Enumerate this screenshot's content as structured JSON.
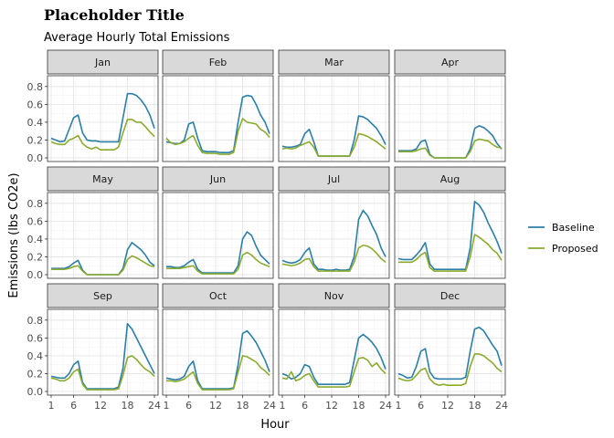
{
  "chart_data": {
    "type": "line",
    "title": "Placeholder Title",
    "subtitle": "Average Hourly Total Emissions",
    "xlabel": "Hour",
    "ylabel": "Emissions (lbs CO2e)",
    "x_ticks": [
      1,
      6,
      12,
      18,
      24
    ],
    "y_ticks": [
      0.0,
      0.2,
      0.4,
      0.6,
      0.8
    ],
    "y_tick_labels": [
      "0.0",
      "0.2",
      "0.4",
      "0.6",
      "0.8"
    ],
    "xlim": [
      1,
      24
    ],
    "ylim": [
      0,
      0.88
    ],
    "grid": true,
    "legend_position": "right",
    "series_colors": {
      "Baseline": "#2a7ea8",
      "Proposed": "#8aab2e"
    },
    "hours": [
      1,
      2,
      3,
      4,
      5,
      6,
      7,
      8,
      9,
      10,
      11,
      12,
      13,
      14,
      15,
      16,
      17,
      18,
      19,
      20,
      21,
      22,
      23,
      24
    ],
    "facets": [
      {
        "label": "Jan",
        "series": [
          {
            "name": "Baseline",
            "values": [
              0.22,
              0.2,
              0.18,
              0.19,
              0.32,
              0.45,
              0.48,
              0.28,
              0.2,
              0.19,
              0.19,
              0.18,
              0.18,
              0.18,
              0.18,
              0.18,
              0.45,
              0.72,
              0.72,
              0.7,
              0.65,
              0.58,
              0.48,
              0.33
            ]
          },
          {
            "name": "Proposed",
            "values": [
              0.18,
              0.16,
              0.15,
              0.15,
              0.2,
              0.22,
              0.25,
              0.16,
              0.12,
              0.1,
              0.12,
              0.09,
              0.09,
              0.09,
              0.09,
              0.12,
              0.28,
              0.43,
              0.43,
              0.4,
              0.4,
              0.35,
              0.29,
              0.24
            ]
          }
        ]
      },
      {
        "label": "Feb",
        "series": [
          {
            "name": "Baseline",
            "values": [
              0.18,
              0.17,
              0.16,
              0.16,
              0.2,
              0.38,
              0.4,
              0.22,
              0.08,
              0.07,
              0.07,
              0.07,
              0.06,
              0.06,
              0.06,
              0.08,
              0.4,
              0.68,
              0.7,
              0.69,
              0.6,
              0.48,
              0.4,
              0.27
            ]
          },
          {
            "name": "Proposed",
            "values": [
              0.22,
              0.17,
              0.15,
              0.16,
              0.18,
              0.22,
              0.25,
              0.14,
              0.06,
              0.05,
              0.05,
              0.05,
              0.04,
              0.04,
              0.04,
              0.06,
              0.3,
              0.44,
              0.4,
              0.39,
              0.38,
              0.32,
              0.29,
              0.23
            ]
          }
        ]
      },
      {
        "label": "Mar",
        "series": [
          {
            "name": "Baseline",
            "values": [
              0.13,
              0.12,
              0.12,
              0.13,
              0.15,
              0.27,
              0.32,
              0.18,
              0.02,
              0.02,
              0.02,
              0.02,
              0.02,
              0.02,
              0.02,
              0.02,
              0.2,
              0.47,
              0.46,
              0.43,
              0.38,
              0.33,
              0.25,
              0.15
            ]
          },
          {
            "name": "Proposed",
            "values": [
              0.1,
              0.11,
              0.1,
              0.11,
              0.14,
              0.16,
              0.18,
              0.12,
              0.02,
              0.02,
              0.02,
              0.02,
              0.02,
              0.02,
              0.02,
              0.02,
              0.12,
              0.27,
              0.26,
              0.24,
              0.21,
              0.18,
              0.14,
              0.1
            ]
          }
        ]
      },
      {
        "label": "Apr",
        "series": [
          {
            "name": "Baseline",
            "values": [
              0.08,
              0.08,
              0.08,
              0.08,
              0.1,
              0.18,
              0.2,
              0.04,
              0.0,
              0.0,
              0.0,
              0.0,
              0.0,
              0.0,
              0.0,
              0.0,
              0.1,
              0.33,
              0.36,
              0.34,
              0.3,
              0.25,
              0.16,
              0.1
            ]
          },
          {
            "name": "Proposed",
            "values": [
              0.07,
              0.07,
              0.07,
              0.07,
              0.08,
              0.1,
              0.11,
              0.03,
              0.0,
              0.0,
              0.0,
              0.0,
              0.0,
              0.0,
              0.0,
              0.0,
              0.07,
              0.19,
              0.21,
              0.2,
              0.19,
              0.15,
              0.12,
              0.11
            ]
          }
        ]
      },
      {
        "label": "May",
        "series": [
          {
            "name": "Baseline",
            "values": [
              0.07,
              0.07,
              0.07,
              0.07,
              0.09,
              0.13,
              0.16,
              0.05,
              0.0,
              0.0,
              0.0,
              0.0,
              0.0,
              0.0,
              0.0,
              0.0,
              0.07,
              0.28,
              0.36,
              0.32,
              0.28,
              0.22,
              0.14,
              0.1
            ]
          },
          {
            "name": "Proposed",
            "values": [
              0.06,
              0.06,
              0.06,
              0.06,
              0.07,
              0.09,
              0.1,
              0.04,
              0.0,
              0.0,
              0.0,
              0.0,
              0.0,
              0.0,
              0.0,
              0.0,
              0.05,
              0.17,
              0.21,
              0.19,
              0.16,
              0.13,
              0.1,
              0.09
            ]
          }
        ]
      },
      {
        "label": "Jun",
        "series": [
          {
            "name": "Baseline",
            "values": [
              0.09,
              0.09,
              0.08,
              0.08,
              0.1,
              0.14,
              0.17,
              0.06,
              0.02,
              0.02,
              0.02,
              0.02,
              0.02,
              0.02,
              0.02,
              0.02,
              0.1,
              0.4,
              0.48,
              0.44,
              0.32,
              0.22,
              0.17,
              0.12
            ]
          },
          {
            "name": "Proposed",
            "values": [
              0.07,
              0.07,
              0.07,
              0.07,
              0.08,
              0.09,
              0.1,
              0.04,
              0.01,
              0.01,
              0.01,
              0.01,
              0.01,
              0.01,
              0.01,
              0.01,
              0.06,
              0.22,
              0.25,
              0.22,
              0.17,
              0.13,
              0.11,
              0.09
            ]
          }
        ]
      },
      {
        "label": "Jul",
        "series": [
          {
            "name": "Baseline",
            "values": [
              0.16,
              0.14,
              0.13,
              0.14,
              0.17,
              0.25,
              0.3,
              0.12,
              0.06,
              0.06,
              0.05,
              0.05,
              0.06,
              0.05,
              0.05,
              0.06,
              0.2,
              0.62,
              0.72,
              0.66,
              0.55,
              0.45,
              0.3,
              0.2
            ]
          },
          {
            "name": "Proposed",
            "values": [
              0.12,
              0.11,
              0.1,
              0.11,
              0.13,
              0.17,
              0.18,
              0.09,
              0.04,
              0.04,
              0.04,
              0.04,
              0.04,
              0.04,
              0.04,
              0.04,
              0.14,
              0.3,
              0.33,
              0.32,
              0.29,
              0.24,
              0.18,
              0.14
            ]
          }
        ]
      },
      {
        "label": "Aug",
        "series": [
          {
            "name": "Baseline",
            "values": [
              0.18,
              0.17,
              0.17,
              0.17,
              0.22,
              0.28,
              0.36,
              0.12,
              0.06,
              0.06,
              0.06,
              0.06,
              0.06,
              0.06,
              0.06,
              0.06,
              0.3,
              0.82,
              0.78,
              0.7,
              0.58,
              0.48,
              0.37,
              0.24
            ]
          },
          {
            "name": "Proposed",
            "values": [
              0.14,
              0.14,
              0.14,
              0.14,
              0.17,
              0.22,
              0.25,
              0.08,
              0.04,
              0.04,
              0.04,
              0.04,
              0.04,
              0.04,
              0.04,
              0.04,
              0.2,
              0.45,
              0.42,
              0.38,
              0.34,
              0.28,
              0.24,
              0.16
            ]
          }
        ]
      },
      {
        "label": "Sep",
        "series": [
          {
            "name": "Baseline",
            "values": [
              0.17,
              0.16,
              0.15,
              0.15,
              0.2,
              0.3,
              0.34,
              0.1,
              0.03,
              0.03,
              0.03,
              0.03,
              0.03,
              0.03,
              0.03,
              0.05,
              0.26,
              0.76,
              0.7,
              0.6,
              0.5,
              0.4,
              0.3,
              0.2
            ]
          },
          {
            "name": "Proposed",
            "values": [
              0.15,
              0.14,
              0.12,
              0.12,
              0.15,
              0.22,
              0.25,
              0.08,
              0.02,
              0.02,
              0.02,
              0.02,
              0.02,
              0.02,
              0.02,
              0.03,
              0.18,
              0.38,
              0.4,
              0.36,
              0.3,
              0.25,
              0.22,
              0.17
            ]
          }
        ]
      },
      {
        "label": "Oct",
        "series": [
          {
            "name": "Baseline",
            "values": [
              0.15,
              0.14,
              0.13,
              0.14,
              0.17,
              0.28,
              0.34,
              0.12,
              0.03,
              0.03,
              0.03,
              0.03,
              0.03,
              0.03,
              0.03,
              0.04,
              0.3,
              0.65,
              0.68,
              0.62,
              0.55,
              0.45,
              0.35,
              0.22
            ]
          },
          {
            "name": "Proposed",
            "values": [
              0.12,
              0.12,
              0.11,
              0.12,
              0.14,
              0.18,
              0.22,
              0.09,
              0.02,
              0.02,
              0.02,
              0.02,
              0.02,
              0.02,
              0.02,
              0.03,
              0.22,
              0.4,
              0.39,
              0.36,
              0.33,
              0.27,
              0.23,
              0.18
            ]
          }
        ]
      },
      {
        "label": "Nov",
        "series": [
          {
            "name": "Baseline",
            "values": [
              0.2,
              0.18,
              0.14,
              0.16,
              0.2,
              0.3,
              0.28,
              0.16,
              0.08,
              0.08,
              0.08,
              0.08,
              0.08,
              0.08,
              0.08,
              0.1,
              0.35,
              0.6,
              0.64,
              0.6,
              0.55,
              0.48,
              0.38,
              0.25
            ]
          },
          {
            "name": "Proposed",
            "values": [
              0.15,
              0.14,
              0.22,
              0.12,
              0.14,
              0.18,
              0.2,
              0.12,
              0.05,
              0.05,
              0.05,
              0.05,
              0.05,
              0.05,
              0.05,
              0.06,
              0.22,
              0.37,
              0.38,
              0.35,
              0.28,
              0.32,
              0.25,
              0.2
            ]
          }
        ]
      },
      {
        "label": "Dec",
        "series": [
          {
            "name": "Baseline",
            "values": [
              0.2,
              0.18,
              0.15,
              0.16,
              0.28,
              0.45,
              0.48,
              0.22,
              0.15,
              0.14,
              0.14,
              0.14,
              0.14,
              0.14,
              0.14,
              0.16,
              0.45,
              0.7,
              0.72,
              0.68,
              0.6,
              0.52,
              0.45,
              0.29
            ]
          },
          {
            "name": "Proposed",
            "values": [
              0.15,
              0.13,
              0.12,
              0.13,
              0.18,
              0.24,
              0.26,
              0.14,
              0.09,
              0.07,
              0.08,
              0.07,
              0.07,
              0.07,
              0.07,
              0.09,
              0.28,
              0.42,
              0.42,
              0.4,
              0.36,
              0.32,
              0.26,
              0.22
            ]
          }
        ]
      }
    ]
  }
}
